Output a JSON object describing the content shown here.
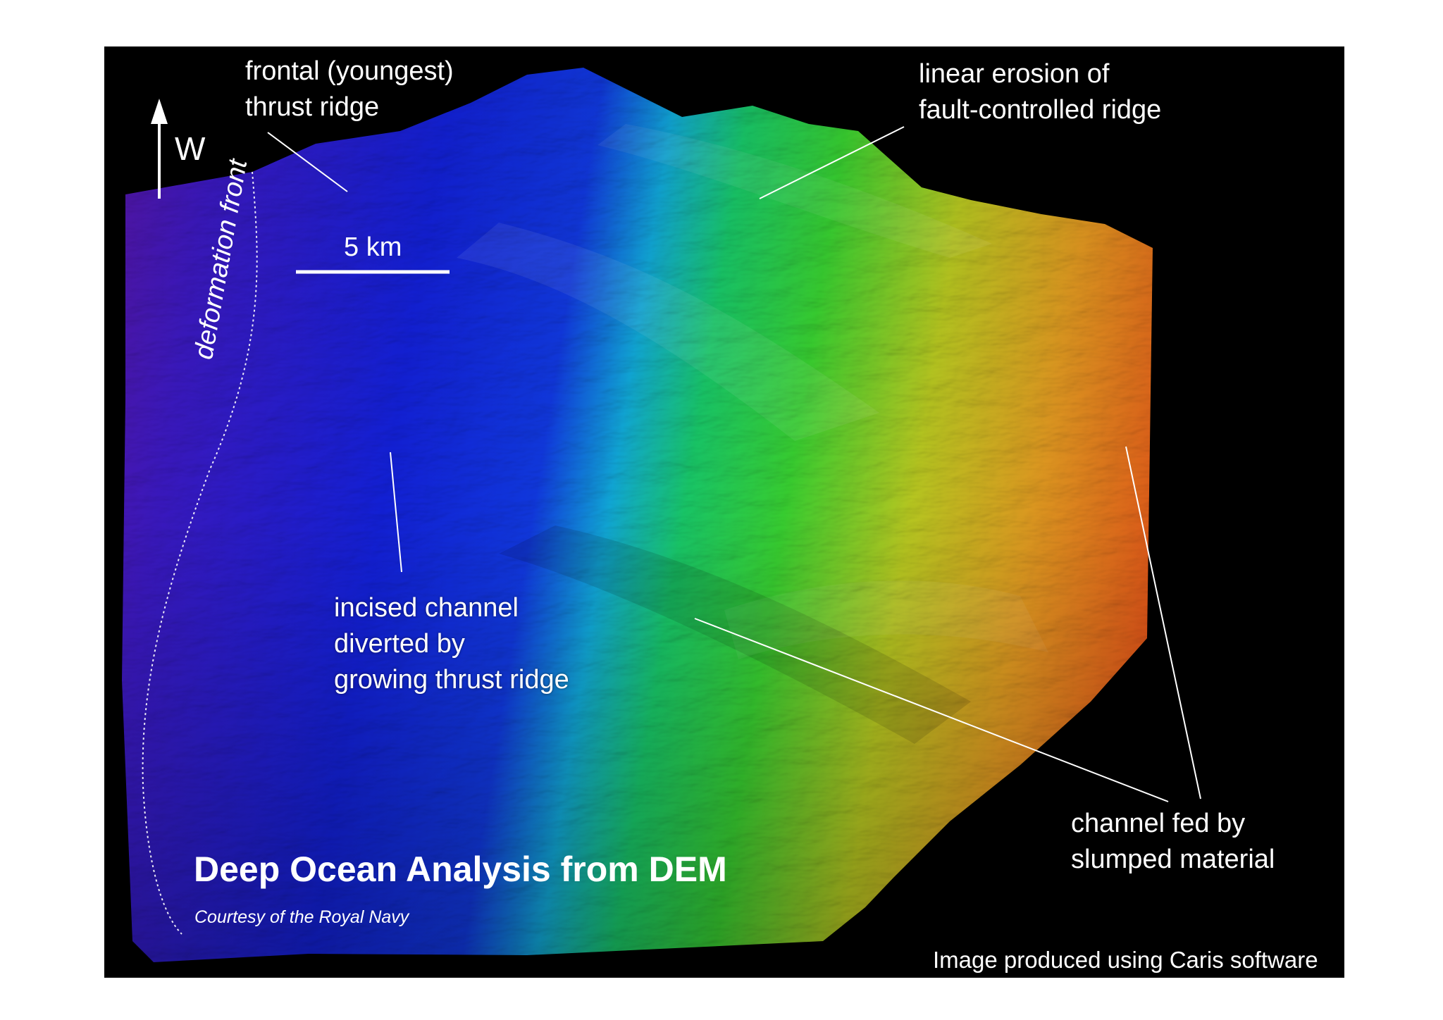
{
  "map": {
    "title": "Deep Ocean Analysis from DEM",
    "credit": "Courtesy of the Royal Navy",
    "software_credit": "Image produced using Caris software",
    "north_arrow": {
      "icon": "north-arrow-icon",
      "letter": "W"
    },
    "scale_bar": {
      "label": "5 km"
    },
    "deformation_front_label": "deformation front",
    "annotations": {
      "frontal_ridge": {
        "line1": "frontal (youngest)",
        "line2": "thrust ridge"
      },
      "linear_erosion": {
        "line1": "linear erosion of",
        "line2": "fault-controlled ridge"
      },
      "incised_channel": {
        "line1": "incised channel",
        "line2": "diverted by",
        "line3": "growing thrust ridge"
      },
      "channel_fed": {
        "line1": "channel fed by",
        "line2": "slumped material"
      }
    },
    "colors": {
      "deep": "#5a14a0",
      "blue": "#1020d8",
      "cyan": "#12c8c8",
      "green": "#20d040",
      "yellow": "#d8c020",
      "orange": "#e07818",
      "red": "#d81818",
      "background": "#000000"
    }
  }
}
